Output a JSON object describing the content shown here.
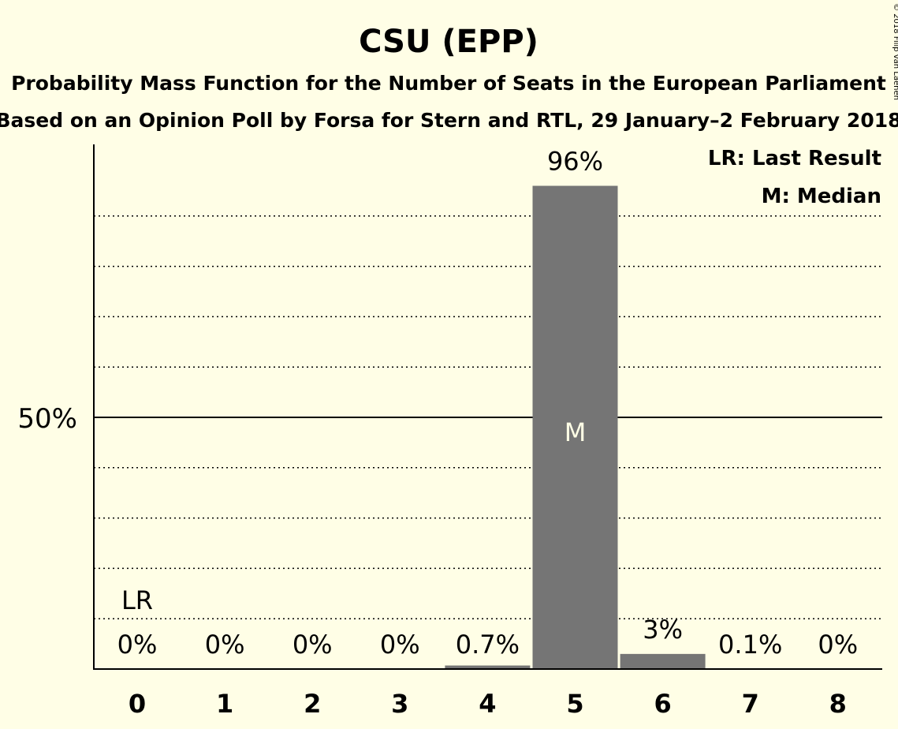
{
  "chart_data": {
    "type": "bar",
    "title": "CSU (EPP)",
    "subtitle": "Probability Mass Function for the Number of Seats in the European Parliament",
    "subtitle2": "Based on an Opinion Poll by Forsa for Stern and RTL, 29 January–2 February 2018",
    "copyright": "© 2018 Filip van Laenen",
    "categories": [
      "0",
      "1",
      "2",
      "3",
      "4",
      "5",
      "6",
      "7",
      "8"
    ],
    "values": [
      0,
      0,
      0,
      0,
      0.7,
      96,
      3,
      0.1,
      0
    ],
    "value_labels": [
      "0%",
      "0%",
      "0%",
      "0%",
      "0.7%",
      "96%",
      "3%",
      "0.1%",
      "0%"
    ],
    "ylim": [
      0,
      105
    ],
    "y_tick_label": "50%",
    "y_tick_value": 50,
    "gridlines": [
      10,
      20,
      30,
      40,
      60,
      70,
      80,
      90
    ],
    "last_result_index": 0,
    "last_result_marker": "LR",
    "median_index": 5,
    "median_marker": "M",
    "legend": {
      "last_result": "LR: Last Result",
      "median": "M: Median",
      "placement": "top-right"
    },
    "colors": {
      "background": "#FFFEE6",
      "bar": "#757575",
      "text": "#000000",
      "median_text": "#FFFEE6"
    }
  }
}
